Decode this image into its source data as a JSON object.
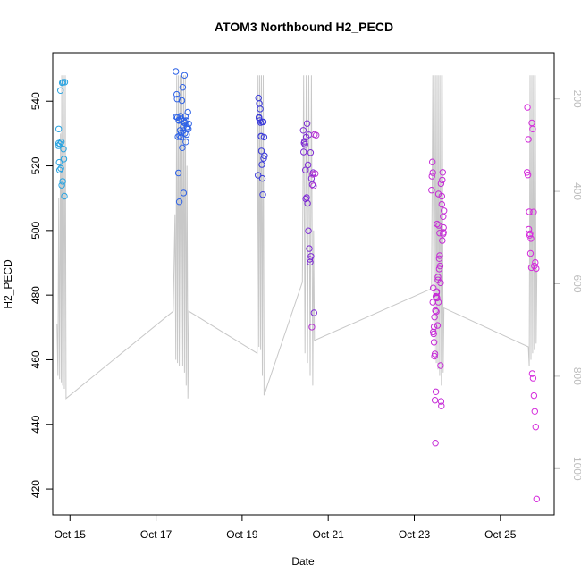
{
  "chart_data": {
    "type": "scatter",
    "title": "ATOM3 Northbound H2_PECD",
    "xlabel": "Date",
    "ylabel": "H2_PECD",
    "xlim_days": [
      14.6,
      26.25
    ],
    "ylim": [
      412,
      555
    ],
    "xticks": [
      {
        "day": 15,
        "label": "Oct 15"
      },
      {
        "day": 17,
        "label": "Oct 17"
      },
      {
        "day": 19,
        "label": "Oct 19"
      },
      {
        "day": 21,
        "label": "Oct 21"
      },
      {
        "day": 23,
        "label": "Oct 23"
      },
      {
        "day": 25,
        "label": "Oct 25"
      }
    ],
    "yticks": [
      420,
      440,
      460,
      480,
      500,
      520,
      540
    ],
    "y2_axis": {
      "ticks": [
        200,
        400,
        600,
        800,
        1000
      ],
      "lim": [
        100,
        1100
      ],
      "reversed": true,
      "color": "#bdbdbd",
      "series_color": "#c8c8c8"
    },
    "altitude_line": [
      [
        14.7,
        471
      ],
      [
        14.72,
        455
      ],
      [
        14.74,
        510
      ],
      [
        14.76,
        454
      ],
      [
        14.78,
        530
      ],
      [
        14.8,
        453
      ],
      [
        14.81,
        548
      ],
      [
        14.83,
        452
      ],
      [
        14.85,
        548
      ],
      [
        14.87,
        451
      ],
      [
        14.89,
        548
      ],
      [
        14.91,
        448
      ],
      [
        17.4,
        475
      ],
      [
        17.44,
        505
      ],
      [
        17.46,
        460
      ],
      [
        17.48,
        548
      ],
      [
        17.5,
        459
      ],
      [
        17.52,
        548
      ],
      [
        17.54,
        458
      ],
      [
        17.56,
        548
      ],
      [
        17.58,
        460
      ],
      [
        17.6,
        548
      ],
      [
        17.62,
        458
      ],
      [
        17.64,
        548
      ],
      [
        17.66,
        456
      ],
      [
        17.68,
        548
      ],
      [
        17.7,
        452
      ],
      [
        17.72,
        520
      ],
      [
        17.74,
        448
      ],
      [
        17.76,
        475
      ],
      [
        19.35,
        462
      ],
      [
        19.37,
        548
      ],
      [
        19.39,
        464
      ],
      [
        19.41,
        548
      ],
      [
        19.43,
        463
      ],
      [
        19.45,
        548
      ],
      [
        19.47,
        455
      ],
      [
        19.49,
        548
      ],
      [
        19.51,
        449
      ],
      [
        20.4,
        484
      ],
      [
        20.43,
        548
      ],
      [
        20.46,
        462
      ],
      [
        20.49,
        548
      ],
      [
        20.52,
        459
      ],
      [
        20.55,
        548
      ],
      [
        20.58,
        455
      ],
      [
        20.61,
        548
      ],
      [
        20.64,
        452
      ],
      [
        20.66,
        500
      ],
      [
        20.68,
        466
      ],
      [
        23.4,
        482
      ],
      [
        23.43,
        548
      ],
      [
        23.46,
        460
      ],
      [
        23.49,
        548
      ],
      [
        23.51,
        459
      ],
      [
        23.53,
        548
      ],
      [
        23.55,
        457
      ],
      [
        23.57,
        548
      ],
      [
        23.59,
        455
      ],
      [
        23.61,
        548
      ],
      [
        23.63,
        452
      ],
      [
        23.65,
        548
      ],
      [
        23.67,
        456
      ],
      [
        23.69,
        476
      ],
      [
        25.65,
        464
      ],
      [
        25.67,
        458
      ],
      [
        25.69,
        548
      ],
      [
        25.71,
        460
      ],
      [
        25.73,
        548
      ],
      [
        25.75,
        462
      ],
      [
        25.77,
        548
      ],
      [
        25.79,
        463
      ],
      [
        25.81,
        548
      ],
      [
        25.83,
        465
      ],
      [
        25.85,
        488
      ]
    ],
    "series": [
      {
        "color": "#29a3e0",
        "x": [
          14.74,
          14.75,
          14.77,
          14.79,
          14.8,
          14.81,
          14.83,
          14.85,
          14.86,
          14.87,
          14.73,
          14.76,
          14.78,
          14.82,
          14.84,
          14.88,
          14.74
        ],
        "y": [
          531.4,
          521.1,
          526.8,
          519.2,
          527.4,
          514.0,
          515.2,
          525.2,
          522.1,
          510.6,
          526.2,
          518.7,
          543.3,
          545.7,
          545.9,
          545.9,
          527.0
        ]
      },
      {
        "color": "#2f63e6",
        "x": [
          17.46,
          17.48,
          17.49,
          17.5,
          17.52,
          17.53,
          17.54,
          17.55,
          17.56,
          17.57,
          17.58,
          17.59,
          17.6,
          17.61,
          17.62,
          17.63,
          17.64,
          17.65,
          17.66,
          17.67,
          17.68,
          17.69,
          17.7,
          17.71,
          17.72,
          17.73,
          17.74,
          17.75,
          17.76,
          17.47,
          17.51,
          17.53,
          17.58,
          17.63,
          17.66
        ],
        "y": [
          549.2,
          542.1,
          540.7,
          535.0,
          517.8,
          534.2,
          508.9,
          529.3,
          531.0,
          535.4,
          528.9,
          534.5,
          540.2,
          525.6,
          544.3,
          530.9,
          511.6,
          533.9,
          548.0,
          530.1,
          535.3,
          527.4,
          534.0,
          529.7,
          532.1,
          531.7,
          536.6,
          531.4,
          533.0,
          535.2,
          529.0,
          534.0,
          530.2,
          532.0,
          533.3
        ]
      },
      {
        "color": "#3b3bd9",
        "x": [
          19.37,
          19.38,
          19.39,
          19.4,
          19.41,
          19.42,
          19.43,
          19.44,
          19.45,
          19.46,
          19.47,
          19.48,
          19.49,
          19.5,
          19.51,
          19.52,
          19.39,
          19.44,
          19.47
        ],
        "y": [
          517.1,
          541.0,
          535.0,
          539.3,
          534.0,
          537.6,
          533.4,
          529.1,
          524.6,
          520.4,
          516.1,
          511.1,
          533.6,
          522.3,
          528.9,
          523.1,
          534.8,
          529.2,
          533.6
        ]
      },
      {
        "color": "#7e2bd4",
        "x": [
          20.42,
          20.44,
          20.46,
          20.48,
          20.5,
          20.52,
          20.54,
          20.56,
          20.58,
          20.6,
          20.43,
          20.45,
          20.47,
          20.49,
          20.51,
          20.53,
          20.55,
          20.57,
          20.59,
          20.61,
          20.63,
          20.65,
          20.67
        ],
        "y": [
          531.0,
          527.1,
          526.6,
          509.8,
          510.2,
          508.4,
          499.9,
          494.4,
          490.2,
          492.0,
          524.3,
          527.6,
          518.7,
          528.9,
          533.1,
          520.3,
          529.6,
          491.1,
          524.1,
          516.1,
          514.2,
          517.9,
          474.5
        ]
      },
      {
        "color": "#b533d1",
        "x": [
          20.62,
          20.64,
          20.66,
          20.68,
          20.7,
          20.72
        ],
        "y": [
          470.1,
          517.4,
          513.8,
          529.7,
          517.6,
          529.5
        ]
      },
      {
        "color": "#c52bd6",
        "x": [
          23.4,
          23.42,
          23.43,
          23.44,
          23.45,
          23.46,
          23.47,
          23.48,
          23.49,
          23.5,
          23.51,
          23.52,
          23.53,
          23.54,
          23.55,
          23.56,
          23.57,
          23.58,
          23.59,
          23.6,
          23.61,
          23.62,
          23.63,
          23.64,
          23.65,
          23.66,
          23.67,
          23.68,
          23.69,
          23.41,
          23.44,
          23.47,
          23.5,
          23.53,
          23.56,
          23.59,
          23.62,
          23.65,
          23.68,
          23.43,
          23.46,
          23.49,
          23.52,
          23.55,
          23.58,
          23.61,
          23.64,
          23.67,
          23.48,
          23.52
        ],
        "y": [
          512.5,
          521.2,
          477.8,
          482.2,
          468.0,
          465.4,
          461.1,
          447.5,
          434.2,
          450.1,
          474.9,
          479.4,
          479.1,
          470.6,
          485.6,
          477.8,
          501.6,
          491.3,
          492.2,
          489.0,
          458.2,
          447.1,
          445.7,
          508.1,
          515.6,
          518.0,
          498.9,
          499.4,
          506.1,
          516.8,
          468.6,
          473.2,
          479.6,
          502.0,
          511.3,
          499.2,
          514.5,
          496.9,
          500.9,
          517.9,
          470.2,
          475.2,
          480.7,
          484.7,
          488.1,
          483.8,
          510.6,
          504.3,
          461.8,
          481.1
        ]
      },
      {
        "color": "#d52bdc",
        "x": [
          25.62,
          25.64,
          25.66,
          25.68,
          25.7,
          25.72,
          25.74,
          25.76,
          25.78,
          25.8,
          25.82,
          25.84,
          25.63,
          25.65,
          25.67,
          25.69,
          25.71,
          25.73,
          25.75,
          25.77,
          25.79,
          25.81,
          25.83
        ],
        "y": [
          518.0,
          517.2,
          500.4,
          498.5,
          492.9,
          488.5,
          455.7,
          454.3,
          448.9,
          444.0,
          439.2,
          416.9,
          538.1,
          528.2,
          505.8,
          499.0,
          497.5,
          533.3,
          531.4,
          505.7,
          489.0,
          490.1,
          488.2
        ]
      }
    ]
  }
}
